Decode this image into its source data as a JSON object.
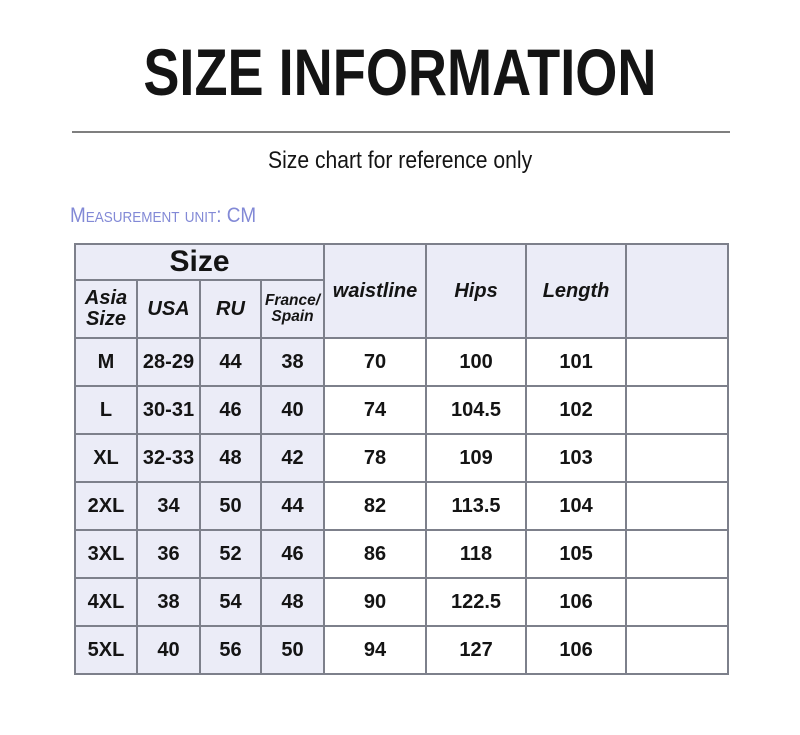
{
  "page": {
    "title": "SIZE INFORMATION",
    "subtitle": "Size chart for reference only",
    "measurement_unit_label": "Measurement unit: CM"
  },
  "colors": {
    "accent": "#8289d6",
    "table_header_bg": "#ebecf7",
    "table_border": "#7d808b",
    "divider": "#7f7f7f",
    "text": "#141414"
  },
  "table": {
    "size_group_header": "Size",
    "size_subheaders": [
      "Asia Size",
      "USA",
      "RU",
      "France/Spain"
    ],
    "measure_headers": [
      "waistline",
      "Hips",
      "Length",
      ""
    ],
    "column_keys": [
      "asia-size",
      "usa",
      "ru",
      "france-spain",
      "waistline",
      "hips",
      "length",
      "notes"
    ],
    "rows": [
      [
        "M",
        "28-29",
        "44",
        "38",
        "70",
        "100",
        "101",
        ""
      ],
      [
        "L",
        "30-31",
        "46",
        "40",
        "74",
        "104.5",
        "102",
        ""
      ],
      [
        "XL",
        "32-33",
        "48",
        "42",
        "78",
        "109",
        "103",
        ""
      ],
      [
        "2XL",
        "34",
        "50",
        "44",
        "82",
        "113.5",
        "104",
        ""
      ],
      [
        "3XL",
        "36",
        "52",
        "46",
        "86",
        "118",
        "105",
        ""
      ],
      [
        "4XL",
        "38",
        "54",
        "48",
        "90",
        "122.5",
        "106",
        ""
      ],
      [
        "5XL",
        "40",
        "56",
        "50",
        "94",
        "127",
        "106",
        ""
      ]
    ]
  }
}
